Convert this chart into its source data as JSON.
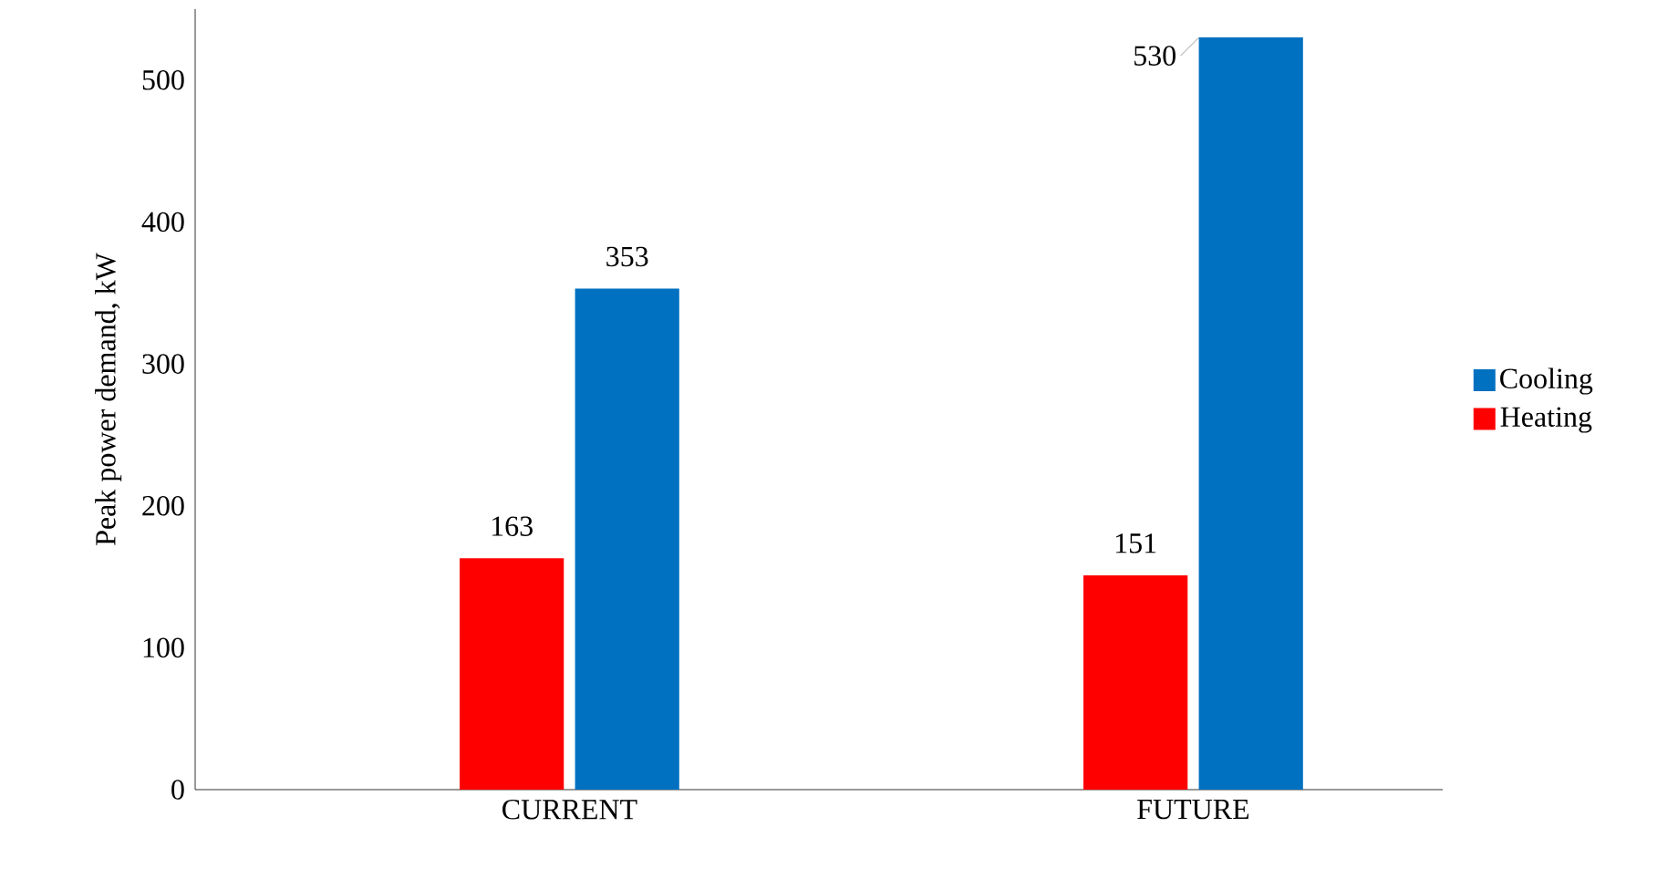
{
  "chart_data": {
    "type": "bar",
    "ylabel": "Peak power demand, kW",
    "categories": [
      "CURRENT",
      "FUTURE"
    ],
    "series": [
      {
        "name": "Heating",
        "color": "#ff0000",
        "values": [
          163,
          151
        ]
      },
      {
        "name": "Cooling",
        "color": "#0070c0",
        "values": [
          353,
          530
        ]
      }
    ],
    "ylim": [
      0,
      550
    ],
    "yticks": [
      0,
      100,
      200,
      300,
      400,
      500
    ],
    "data_labels": true,
    "legend": "right",
    "grid": false
  }
}
